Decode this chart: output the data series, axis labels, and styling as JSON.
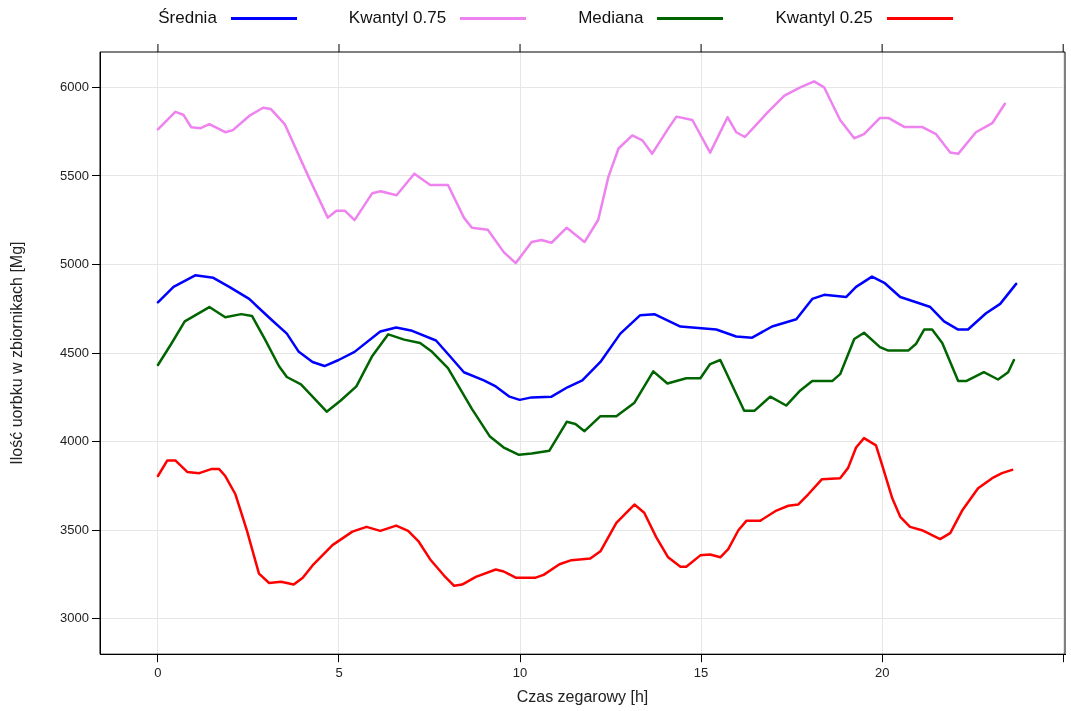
{
  "chart_data": {
    "type": "line",
    "xlabel": "Czas zegarowy [h]",
    "ylabel": "Ilość uorbku w zbiornikach [Mg]",
    "xlim": [
      -1.6,
      25.05
    ],
    "ylim": [
      2800,
      6200
    ],
    "xticks": [
      0,
      5,
      10,
      15,
      20,
      {
        "value": 25,
        "label": null
      }
    ],
    "yticks": [
      3000,
      3500,
      4000,
      4500,
      5000,
      5500,
      6000
    ],
    "grid": true,
    "legend": "top",
    "marker": "none",
    "line_style": "solid",
    "series": [
      {
        "name": "Średnia",
        "color": "#0000ff",
        "x": [
          0,
          0.43,
          1.03,
          1.53,
          1.97,
          2.52,
          3.12,
          3.56,
          3.89,
          4.27,
          4.6,
          4.99,
          5.43,
          6.14,
          6.58,
          7.02,
          7.68,
          8.01,
          8.45,
          9.0,
          9.33,
          9.71,
          9.99,
          10.32,
          10.87,
          11.31,
          11.72,
          12.22,
          12.77,
          13.32,
          13.71,
          14.43,
          15.42,
          15.97,
          16.41,
          16.96,
          17.63,
          18.07,
          18.4,
          19.01,
          19.28,
          19.72,
          20.06,
          20.5,
          20.94,
          21.33,
          21.71,
          22.1,
          22.37,
          22.87,
          23.26,
          23.7
        ],
        "values": [
          4787,
          4874,
          4939,
          4925,
          4874,
          4806,
          4691,
          4610,
          4507,
          4450,
          4427,
          4461,
          4507,
          4622,
          4645,
          4626,
          4571,
          4495,
          4392,
          4346,
          4312,
          4254,
          4236,
          4250,
          4254,
          4307,
          4346,
          4450,
          4610,
          4714,
          4720,
          4650,
          4633,
          4594,
          4587,
          4650,
          4691,
          4806,
          4829,
          4817,
          4874,
          4932,
          4897,
          4817,
          4787,
          4760,
          4679,
          4633,
          4633,
          4725,
          4778,
          4891
        ]
      },
      {
        "name": "Kwantyl 0.75",
        "color": "#ee82ee",
        "x": [
          0,
          0.48,
          0.7,
          0.92,
          1.18,
          1.42,
          1.86,
          2.07,
          2.52,
          2.9,
          3.12,
          3.5,
          4.16,
          4.69,
          4.93,
          5.16,
          5.43,
          5.92,
          6.15,
          6.59,
          7.08,
          7.52,
          8.01,
          8.45,
          8.67,
          9.11,
          9.55,
          9.88,
          10.32,
          10.59,
          10.87,
          11.29,
          11.78,
          12.16,
          12.44,
          12.72,
          13.1,
          13.38,
          13.65,
          14.1,
          14.32,
          14.76,
          15.25,
          15.73,
          15.97,
          16.21,
          16.85,
          17.3,
          17.74,
          18.12,
          18.4,
          18.84,
          19.23,
          19.5,
          19.94,
          20.17,
          20.61,
          21.1,
          21.49,
          21.88,
          22.1,
          22.59,
          23.04,
          23.39
        ],
        "values": [
          5763,
          5862,
          5846,
          5775,
          5770,
          5793,
          5747,
          5759,
          5839,
          5885,
          5878,
          5793,
          5495,
          5265,
          5304,
          5304,
          5251,
          5403,
          5414,
          5391,
          5513,
          5449,
          5449,
          5265,
          5208,
          5196,
          5070,
          5008,
          5127,
          5139,
          5123,
          5208,
          5127,
          5253,
          5495,
          5655,
          5729,
          5701,
          5626,
          5770,
          5835,
          5816,
          5632,
          5832,
          5747,
          5720,
          5862,
          5954,
          6000,
          6034,
          6000,
          5816,
          5713,
          5736,
          5828,
          5828,
          5777,
          5777,
          5736,
          5632,
          5625,
          5747,
          5798,
          5908
        ]
      },
      {
        "name": "Mediana",
        "color": "#006400",
        "x": [
          0,
          0.37,
          0.74,
          1.42,
          1.86,
          2.3,
          2.6,
          2.96,
          3.34,
          3.56,
          3.95,
          4.27,
          4.66,
          5.04,
          5.48,
          5.92,
          6.36,
          6.8,
          7.24,
          7.57,
          8.01,
          8.67,
          9.16,
          9.55,
          9.97,
          10.32,
          10.81,
          11.29,
          11.53,
          11.78,
          12.22,
          12.66,
          13.16,
          13.68,
          14.07,
          14.59,
          14.98,
          15.25,
          15.53,
          16.19,
          16.47,
          16.91,
          17.35,
          17.74,
          18.07,
          18.62,
          18.84,
          19.23,
          19.5,
          19.94,
          20.17,
          20.72,
          20.94,
          21.16,
          21.38,
          21.66,
          22.1,
          22.32,
          22.81,
          23.2,
          23.48,
          23.64
        ],
        "values": [
          4433,
          4553,
          4679,
          4760,
          4702,
          4720,
          4709,
          4576,
          4427,
          4365,
          4323,
          4254,
          4169,
          4231,
          4312,
          4484,
          4606,
          4576,
          4557,
          4507,
          4415,
          4185,
          4031,
          3967,
          3926,
          3933,
          3949,
          4112,
          4100,
          4059,
          4144,
          4144,
          4220,
          4397,
          4328,
          4358,
          4358,
          4438,
          4461,
          4174,
          4174,
          4254,
          4204,
          4289,
          4342,
          4342,
          4381,
          4580,
          4615,
          4534,
          4514,
          4514,
          4553,
          4633,
          4633,
          4557,
          4342,
          4342,
          4392,
          4351,
          4392,
          4461
        ]
      },
      {
        "name": "Kwantyl 0.25",
        "color": "#ff0000",
        "x": [
          0,
          0.26,
          0.48,
          0.81,
          1.14,
          1.47,
          1.69,
          1.86,
          2.14,
          2.46,
          2.79,
          3.07,
          3.4,
          3.75,
          4.0,
          4.27,
          4.82,
          5.37,
          5.76,
          6.14,
          6.58,
          6.91,
          7.19,
          7.52,
          7.9,
          8.18,
          8.4,
          8.78,
          9.33,
          9.55,
          9.88,
          10.43,
          10.65,
          11.09,
          11.42,
          11.94,
          12.22,
          12.66,
          13.16,
          13.43,
          13.76,
          14.09,
          14.43,
          14.59,
          14.98,
          15.25,
          15.53,
          15.75,
          16.03,
          16.25,
          16.63,
          17.08,
          17.41,
          17.68,
          17.96,
          18.34,
          18.84,
          19.06,
          19.28,
          19.5,
          19.83,
          19.99,
          20.28,
          20.5,
          20.77,
          21.1,
          21.6,
          21.88,
          22.21,
          22.65,
          23.04,
          23.31,
          23.59
        ],
        "values": [
          3806,
          3894,
          3894,
          3829,
          3822,
          3845,
          3845,
          3806,
          3703,
          3496,
          3255,
          3202,
          3209,
          3193,
          3232,
          3301,
          3416,
          3492,
          3519,
          3496,
          3526,
          3496,
          3439,
          3335,
          3244,
          3186,
          3193,
          3237,
          3278,
          3267,
          3232,
          3232,
          3248,
          3308,
          3331,
          3340,
          3381,
          3542,
          3645,
          3599,
          3461,
          3347,
          3294,
          3294,
          3358,
          3363,
          3347,
          3393,
          3500,
          3553,
          3553,
          3611,
          3638,
          3645,
          3703,
          3788,
          3794,
          3852,
          3967,
          4020,
          3979,
          3875,
          3680,
          3576,
          3519,
          3500,
          3450,
          3484,
          3611,
          3737,
          3794,
          3822,
          3841
        ]
      }
    ]
  }
}
